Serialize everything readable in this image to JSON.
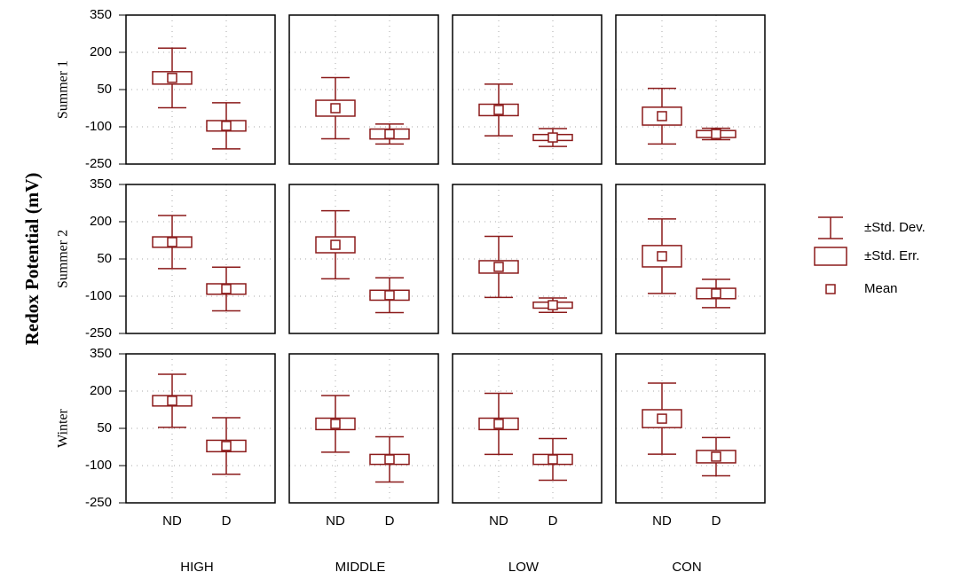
{
  "chart_data": {
    "type": "box",
    "y_label": "Redox Potential (mV)",
    "rows": [
      "Summer 1",
      "Summer 2",
      "Winter"
    ],
    "columns": [
      "HIGH",
      "MIDDLE",
      "LOW",
      "CON"
    ],
    "categories": [
      "ND",
      "D"
    ],
    "ylim": [
      -250,
      350
    ],
    "yticks": [
      -250,
      -100,
      50,
      200,
      350
    ],
    "grid": true,
    "color": "#8b1a1a",
    "legend_position": "right",
    "legend": [
      "±Std. Dev.",
      "±Std. Err.",
      "Mean"
    ],
    "panels": [
      [
        {
          "mean": [
            97,
            -96
          ],
          "se": [
            25,
            21
          ],
          "sd": [
            120,
            93
          ]
        },
        {
          "mean": [
            -25,
            -129
          ],
          "se": [
            32,
            20
          ],
          "sd": [
            123,
            40
          ]
        },
        {
          "mean": [
            -32,
            -143
          ],
          "se": [
            23,
            12
          ],
          "sd": [
            104,
            36
          ]
        },
        {
          "mean": [
            -57,
            -129
          ],
          "se": [
            36,
            14
          ],
          "sd": [
            112,
            23
          ]
        }
      ],
      [
        {
          "mean": [
            118,
            -71
          ],
          "se": [
            21,
            21
          ],
          "sd": [
            107,
            88
          ]
        },
        {
          "mean": [
            107,
            -96
          ],
          "se": [
            32,
            20
          ],
          "sd": [
            137,
            70
          ]
        },
        {
          "mean": [
            18,
            -136
          ],
          "se": [
            25,
            12
          ],
          "sd": [
            123,
            29
          ]
        },
        {
          "mean": [
            61,
            -89
          ],
          "se": [
            43,
            21
          ],
          "sd": [
            150,
            57
          ]
        }
      ],
      [
        {
          "mean": [
            161,
            -21
          ],
          "se": [
            21,
            23
          ],
          "sd": [
            107,
            114
          ]
        },
        {
          "mean": [
            68,
            -75
          ],
          "se": [
            23,
            20
          ],
          "sd": [
            114,
            91
          ]
        },
        {
          "mean": [
            68,
            -75
          ],
          "se": [
            23,
            20
          ],
          "sd": [
            123,
            84
          ]
        },
        {
          "mean": [
            89,
            -64
          ],
          "se": [
            36,
            25
          ],
          "sd": [
            143,
            77
          ]
        }
      ]
    ]
  }
}
